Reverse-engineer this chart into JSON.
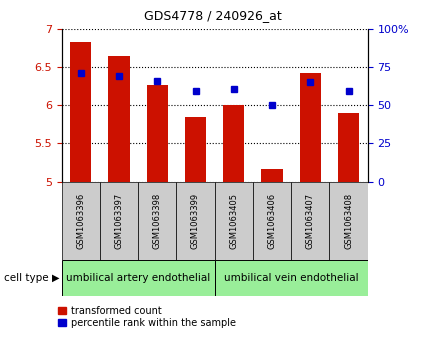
{
  "title": "GDS4778 / 240926_at",
  "samples": [
    "GSM1063396",
    "GSM1063397",
    "GSM1063398",
    "GSM1063399",
    "GSM1063405",
    "GSM1063406",
    "GSM1063407",
    "GSM1063408"
  ],
  "red_values": [
    6.83,
    6.65,
    6.27,
    5.84,
    6.0,
    5.17,
    6.42,
    5.9
  ],
  "blue_values": [
    6.42,
    6.38,
    6.32,
    6.19,
    6.21,
    6.0,
    6.3,
    6.19
  ],
  "ylim_left": [
    5.0,
    7.0
  ],
  "ylim_right": [
    0,
    100
  ],
  "yticks_left": [
    5.0,
    5.5,
    6.0,
    6.5,
    7.0
  ],
  "ytick_labels_left": [
    "5",
    "5.5",
    "6",
    "6.5",
    "7"
  ],
  "yticks_right": [
    0,
    25,
    50,
    75,
    100
  ],
  "ytick_labels_right": [
    "0",
    "25",
    "50",
    "75",
    "100%"
  ],
  "bar_color": "#cc1100",
  "dot_color": "#0000cc",
  "bar_bottom": 5.0,
  "group1_label": "umbilical artery endothelial",
  "group2_label": "umbilical vein endothelial",
  "group1_indices": [
    0,
    1,
    2,
    3
  ],
  "group2_indices": [
    4,
    5,
    6,
    7
  ],
  "cell_type_label": "cell type",
  "legend_red": "transformed count",
  "legend_blue": "percentile rank within the sample",
  "group_bg": "#99ee99",
  "sample_bg": "#cccccc",
  "left_tick_color": "#cc1100",
  "right_tick_color": "#0000cc",
  "bar_width": 0.55
}
